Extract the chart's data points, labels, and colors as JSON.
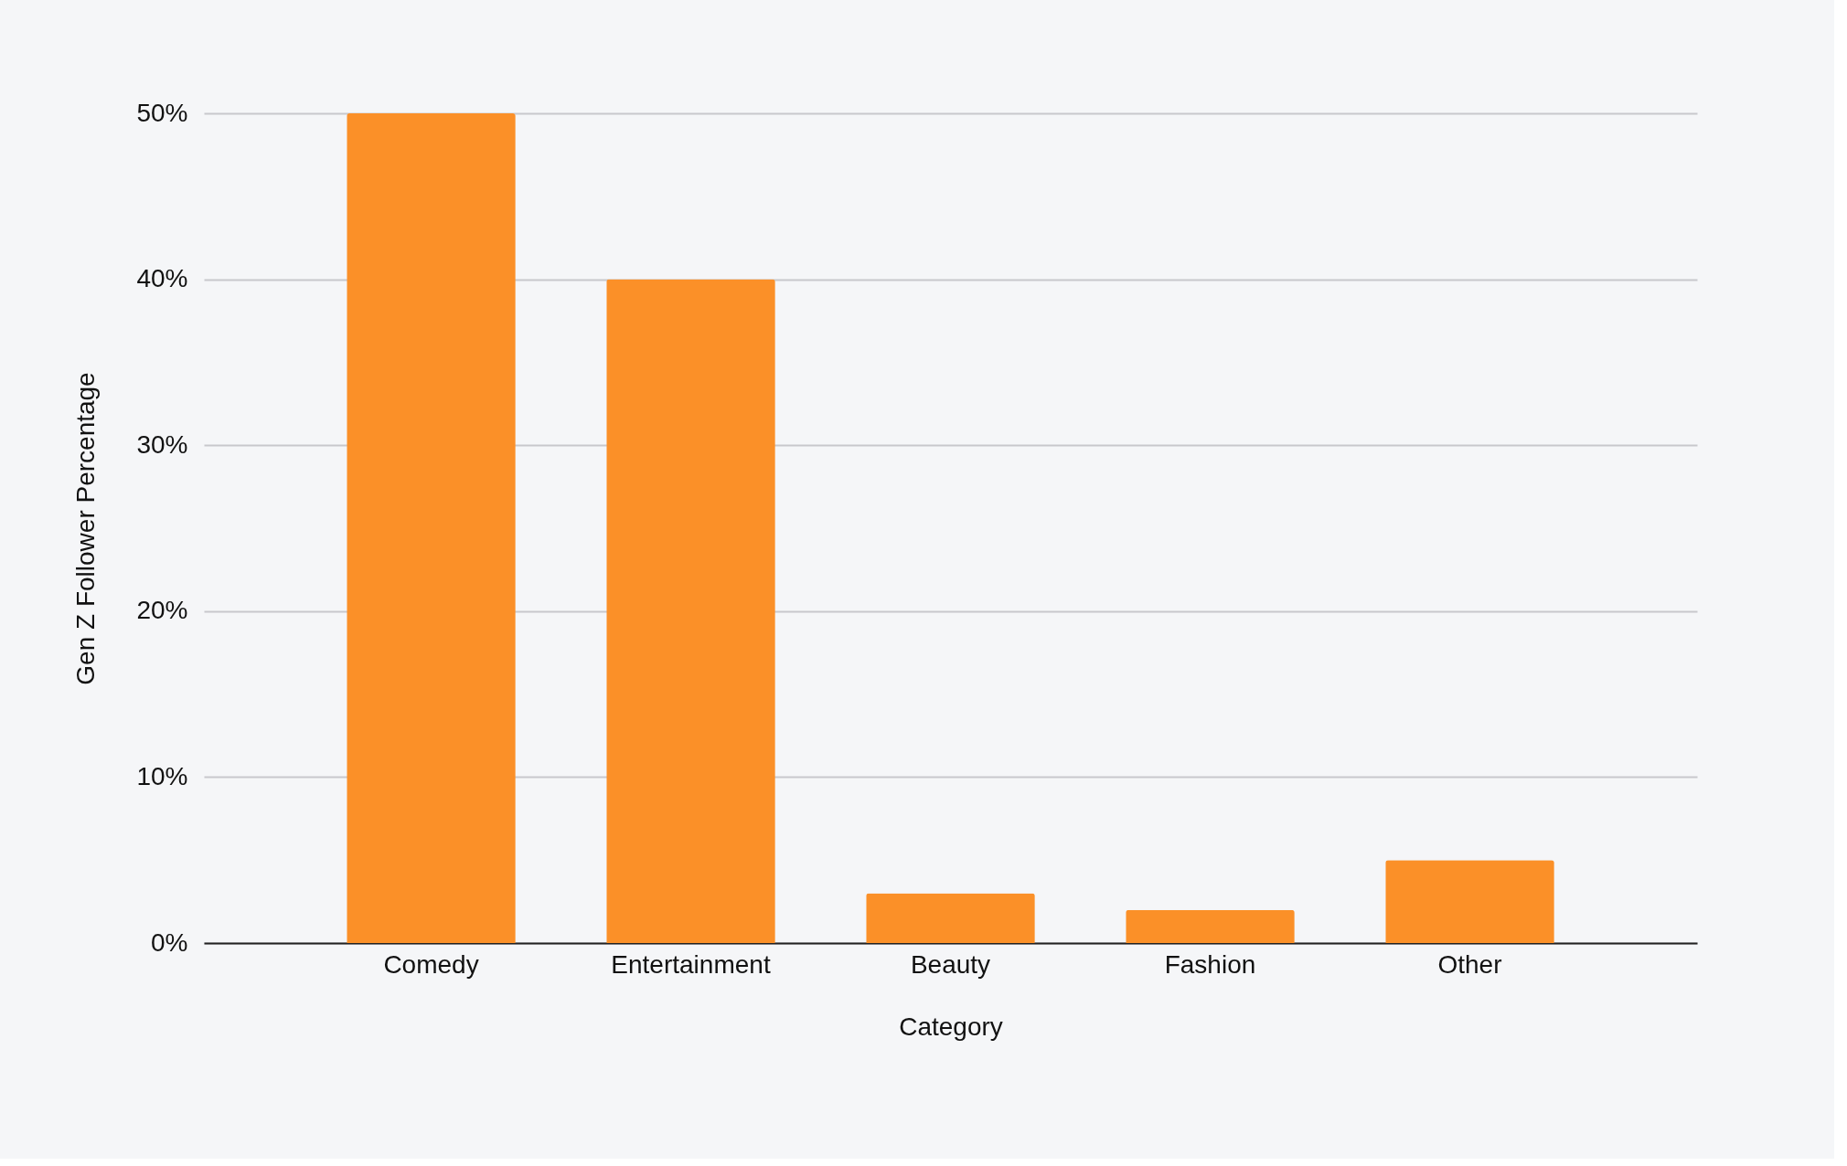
{
  "chart_data": {
    "type": "bar",
    "xlabel": "Category",
    "ylabel": "Gen Z Follower Percentage",
    "categories": [
      "Comedy",
      "Entertainment",
      "Beauty",
      "Fashion",
      "Other"
    ],
    "values": [
      50,
      40,
      3,
      2,
      5
    ],
    "color": "#fb9028",
    "ylim": [
      0,
      50
    ],
    "yticks": [
      {
        "value": 0,
        "label": "0%"
      },
      {
        "value": 10,
        "label": "10%"
      },
      {
        "value": 20,
        "label": "20%"
      },
      {
        "value": 30,
        "label": "30%"
      },
      {
        "value": 40,
        "label": "40%"
      },
      {
        "value": 50,
        "label": "50%"
      }
    ],
    "grid": "y"
  }
}
